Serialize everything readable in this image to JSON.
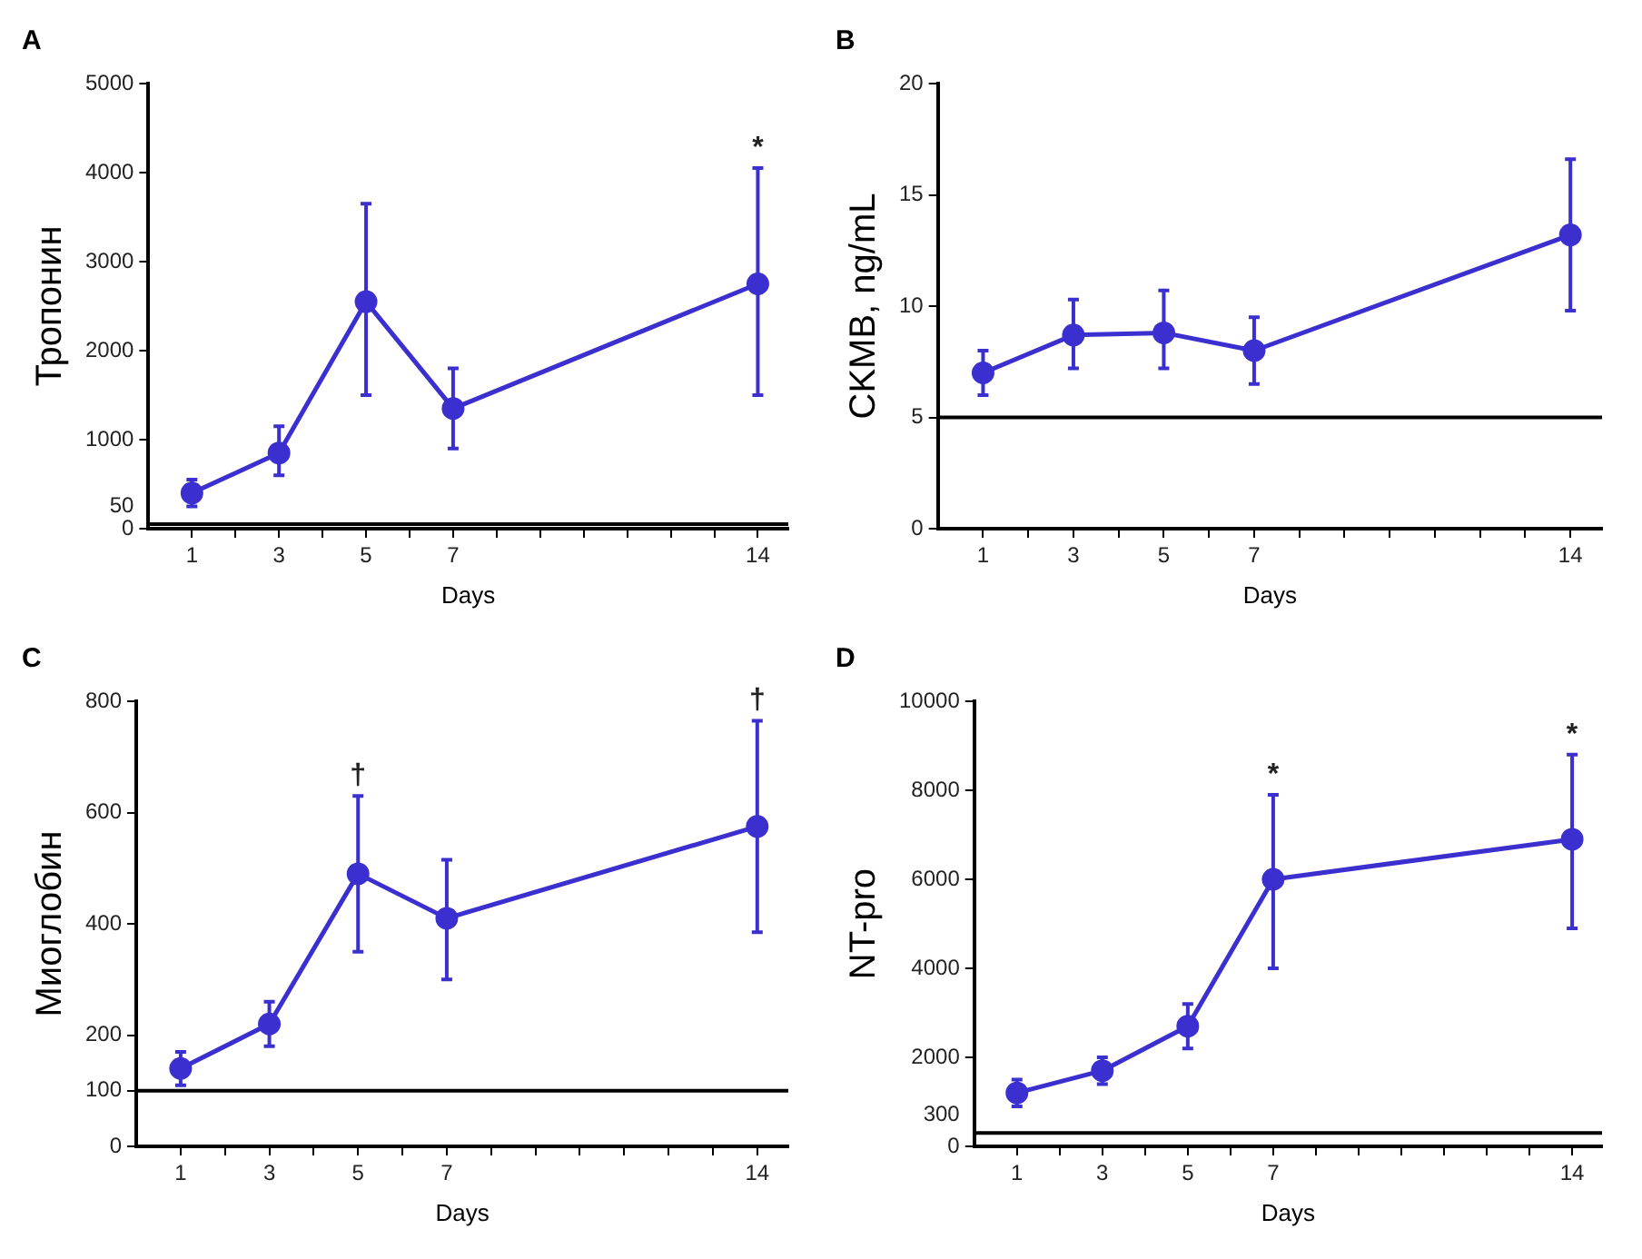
{
  "chart_data": [
    {
      "type": "line",
      "title": "A",
      "xlabel": "Days",
      "ylabel": "Тропонин",
      "x": [
        1,
        3,
        5,
        7,
        14
      ],
      "series": [
        {
          "color": "#3b2fd0",
          "values": [
            400,
            850,
            2550,
            1350,
            2750
          ],
          "errors": [
            [
              250,
              550
            ],
            [
              600,
              1150
            ],
            [
              1500,
              3650
            ],
            [
              900,
              1800
            ],
            [
              1500,
              4050
            ]
          ]
        }
      ],
      "xlim": [
        0,
        14.7
      ],
      "xticks": [
        1,
        {
          "value": 2,
          "label": null
        },
        3,
        {
          "value": 4,
          "label": null
        },
        5,
        {
          "value": 6,
          "label": null
        },
        7,
        {
          "value": 8,
          "label": null
        },
        {
          "value": 9,
          "label": null
        },
        {
          "value": 10,
          "label": null
        },
        {
          "value": 11,
          "label": null
        },
        {
          "value": 12,
          "label": null
        },
        {
          "value": 13,
          "label": null
        },
        14
      ],
      "ylim": [
        0,
        5000
      ],
      "yticks": [
        0,
        1000,
        2000,
        3000,
        4000,
        5000
      ],
      "ref_lines": [
        {
          "axis": "y",
          "value": 50,
          "label": "50",
          "color": "#000000"
        }
      ],
      "annotations": [
        {
          "text": "*",
          "x": 14,
          "y": 4050
        }
      ],
      "grid": false,
      "legend": false,
      "marker": "circle",
      "line_style": "solid"
    },
    {
      "type": "line",
      "title": "B",
      "xlabel": "Days",
      "ylabel": "CKMB, ng/mL",
      "x": [
        1,
        3,
        5,
        7,
        14
      ],
      "series": [
        {
          "color": "#3b2fd0",
          "values": [
            7,
            8.7,
            8.8,
            8,
            13.2
          ],
          "errors": [
            [
              6,
              8
            ],
            [
              7.2,
              10.3
            ],
            [
              7.2,
              10.7
            ],
            [
              6.5,
              9.5
            ],
            [
              9.8,
              16.6
            ]
          ]
        }
      ],
      "xlim": [
        0,
        14.7
      ],
      "xticks": [
        1,
        {
          "value": 2,
          "label": null
        },
        3,
        {
          "value": 4,
          "label": null
        },
        5,
        {
          "value": 6,
          "label": null
        },
        7,
        {
          "value": 8,
          "label": null
        },
        {
          "value": 9,
          "label": null
        },
        {
          "value": 10,
          "label": null
        },
        {
          "value": 11,
          "label": null
        },
        {
          "value": 12,
          "label": null
        },
        {
          "value": 13,
          "label": null
        },
        14
      ],
      "ylim": [
        0,
        20
      ],
      "yticks": [
        0,
        5,
        10,
        15,
        20
      ],
      "ref_lines": [
        {
          "axis": "y",
          "value": 5,
          "color": "#000000"
        }
      ],
      "grid": false,
      "legend": false,
      "marker": "circle",
      "line_style": "solid"
    },
    {
      "type": "line",
      "title": "C",
      "xlabel": "Days",
      "ylabel": "Миоглобин",
      "x": [
        1,
        3,
        5,
        7,
        14
      ],
      "series": [
        {
          "color": "#3b2fd0",
          "values": [
            140,
            220,
            490,
            410,
            575
          ],
          "errors": [
            [
              110,
              170
            ],
            [
              180,
              260
            ],
            [
              350,
              630
            ],
            [
              300,
              515
            ],
            [
              385,
              765
            ]
          ]
        }
      ],
      "xlim": [
        0,
        14.7
      ],
      "xticks": [
        1,
        {
          "value": 2,
          "label": null
        },
        3,
        {
          "value": 4,
          "label": null
        },
        5,
        {
          "value": 6,
          "label": null
        },
        7,
        {
          "value": 8,
          "label": null
        },
        {
          "value": 9,
          "label": null
        },
        {
          "value": 10,
          "label": null
        },
        {
          "value": 11,
          "label": null
        },
        {
          "value": 12,
          "label": null
        },
        {
          "value": 13,
          "label": null
        },
        14
      ],
      "ylim": [
        0,
        800
      ],
      "yticks": [
        0,
        100,
        200,
        400,
        600,
        800
      ],
      "ref_lines": [
        {
          "axis": "y",
          "value": 100,
          "color": "#000000"
        }
      ],
      "annotations": [
        {
          "text": "†",
          "x": 5,
          "y": 630
        },
        {
          "text": "†",
          "x": 14,
          "y": 765
        }
      ],
      "grid": false,
      "legend": false,
      "marker": "circle",
      "line_style": "solid"
    },
    {
      "type": "line",
      "title": "D",
      "xlabel": "Days",
      "ylabel": "NT-pro",
      "x": [
        1,
        3,
        5,
        7,
        14
      ],
      "series": [
        {
          "color": "#3b2fd0",
          "values": [
            1200,
            1700,
            2700,
            6000,
            6900
          ],
          "errors": [
            [
              900,
              1500
            ],
            [
              1400,
              2000
            ],
            [
              2200,
              3200
            ],
            [
              4000,
              7900
            ],
            [
              4900,
              8800
            ]
          ]
        }
      ],
      "xlim": [
        0,
        14.7
      ],
      "xticks": [
        1,
        {
          "value": 2,
          "label": null
        },
        3,
        {
          "value": 4,
          "label": null
        },
        5,
        {
          "value": 6,
          "label": null
        },
        7,
        {
          "value": 8,
          "label": null
        },
        {
          "value": 9,
          "label": null
        },
        {
          "value": 10,
          "label": null
        },
        {
          "value": 11,
          "label": null
        },
        {
          "value": 12,
          "label": null
        },
        {
          "value": 13,
          "label": null
        },
        14
      ],
      "ylim": [
        0,
        10000
      ],
      "yticks": [
        0,
        2000,
        4000,
        6000,
        8000,
        10000
      ],
      "ref_lines": [
        {
          "axis": "y",
          "value": 300,
          "label": "300",
          "color": "#000000"
        }
      ],
      "annotations": [
        {
          "text": "*",
          "x": 7,
          "y": 7900
        },
        {
          "text": "*",
          "x": 14,
          "y": 8800
        }
      ],
      "grid": false,
      "legend": false,
      "marker": "circle",
      "line_style": "solid"
    }
  ]
}
